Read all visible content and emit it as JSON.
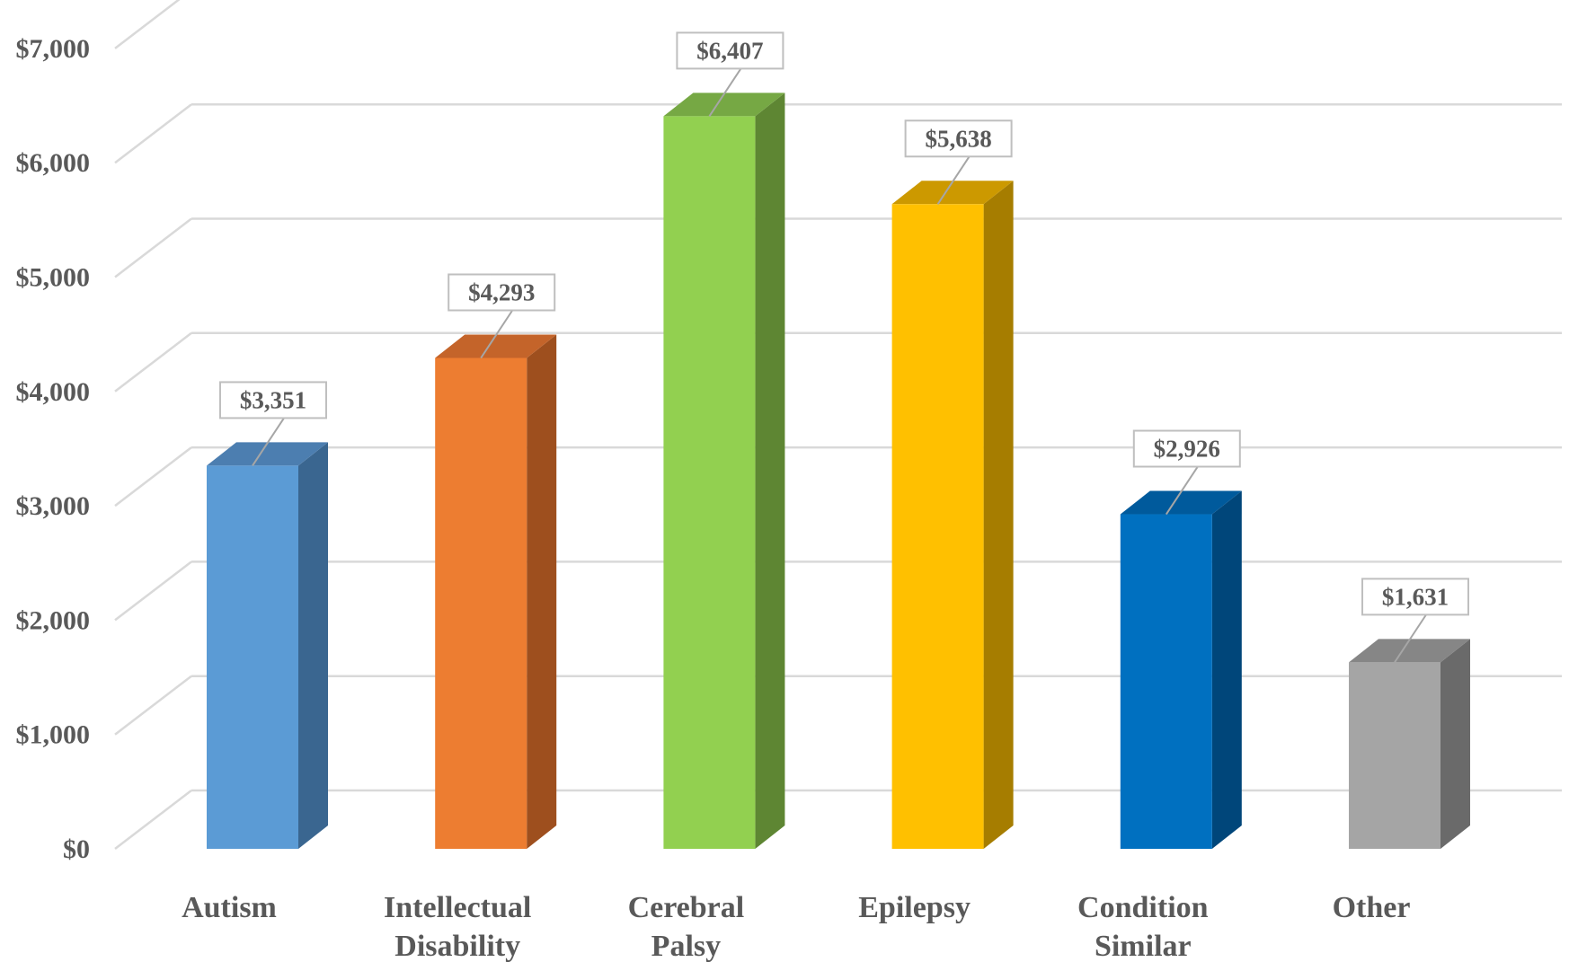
{
  "chart_data": {
    "type": "bar",
    "style": "3d-column",
    "categories": [
      "Autism",
      "Intellectual Disability",
      "Cerebral Palsy",
      "Epilepsy",
      "Condition Similar",
      "Other"
    ],
    "category_lines": [
      [
        "Autism"
      ],
      [
        "Intellectual",
        "Disability"
      ],
      [
        "Cerebral",
        "Palsy"
      ],
      [
        "Epilepsy"
      ],
      [
        "Condition",
        "Similar"
      ],
      [
        "Other"
      ]
    ],
    "values": [
      3351,
      4293,
      6407,
      5638,
      2926,
      1631
    ],
    "data_labels": [
      "$3,351",
      "$4,293",
      "$6,407",
      "$5,638",
      "$2,926",
      "$1,631"
    ],
    "ylim": [
      0,
      7000
    ],
    "y_ticks": [
      0,
      1000,
      2000,
      3000,
      4000,
      5000,
      6000,
      7000
    ],
    "y_tick_labels": [
      "$0",
      "$1,000",
      "$2,000",
      "$3,000",
      "$4,000",
      "$5,000",
      "$6,000",
      "$7,000"
    ],
    "title": "",
    "xlabel": "",
    "ylabel": "",
    "grid": true,
    "legend": "none",
    "colors": {
      "front": [
        "#5B9BD5",
        "#ED7D31",
        "#92D050",
        "#FFC000",
        "#0070C0",
        "#A5A5A5"
      ],
      "side": [
        "#3A6690",
        "#9E4F1E",
        "#5E8633",
        "#A67D00",
        "#00467A",
        "#6A6A6A"
      ],
      "top": [
        "#4C7EB0",
        "#C4642A",
        "#76A844",
        "#CC9900",
        "#005A9C",
        "#868686"
      ],
      "grid": "#D9D9D9",
      "text": "#595959"
    }
  }
}
